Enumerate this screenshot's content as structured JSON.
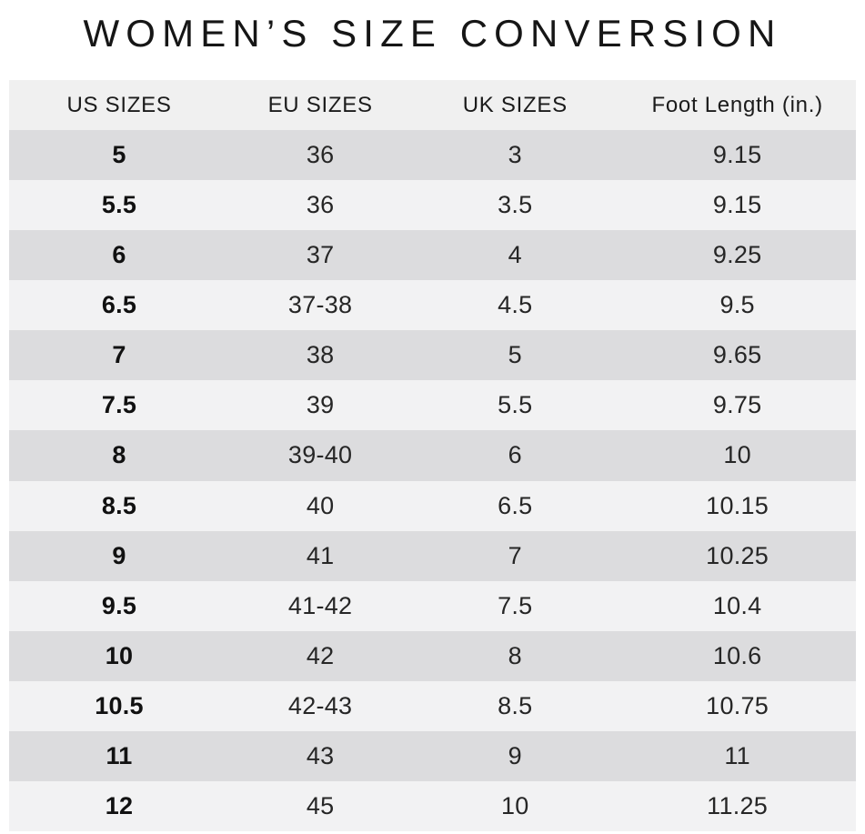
{
  "title": "WOMEN’S SIZE CONVERSION",
  "colors": {
    "page_bg": "#ffffff",
    "header_row_bg": "#f0f0f0",
    "odd_row_bg": "#dcdcde",
    "even_row_bg": "#f2f2f3",
    "text": "#1e1e1e"
  },
  "chart_data": {
    "type": "table",
    "title": "WOMEN’S SIZE CONVERSION",
    "columns": [
      "US SIZES",
      "EU SIZES",
      "UK SIZES",
      "Foot Length (in.)"
    ],
    "rows": [
      [
        "5",
        "36",
        "3",
        "9.15"
      ],
      [
        "5.5",
        "36",
        "3.5",
        "9.15"
      ],
      [
        "6",
        "37",
        "4",
        "9.25"
      ],
      [
        "6.5",
        "37-38",
        "4.5",
        "9.5"
      ],
      [
        "7",
        "38",
        "5",
        "9.65"
      ],
      [
        "7.5",
        "39",
        "5.5",
        "9.75"
      ],
      [
        "8",
        "39-40",
        "6",
        "10"
      ],
      [
        "8.5",
        "40",
        "6.5",
        "10.15"
      ],
      [
        "9",
        "41",
        "7",
        "10.25"
      ],
      [
        "9.5",
        "41-42",
        "7.5",
        "10.4"
      ],
      [
        "10",
        "42",
        "8",
        "10.6"
      ],
      [
        "10.5",
        "42-43",
        "8.5",
        "10.75"
      ],
      [
        "11",
        "43",
        "9",
        "11"
      ],
      [
        "12",
        "45",
        "10",
        "11.25"
      ]
    ]
  }
}
